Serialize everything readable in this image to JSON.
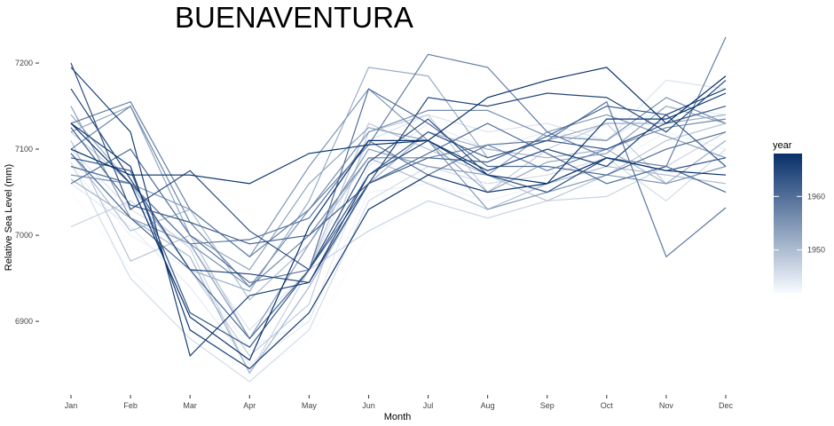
{
  "chart_data": {
    "type": "line",
    "title": "BUENAVENTURA",
    "xlabel": "Month",
    "ylabel": "Relative Sea Level (mm)",
    "categories": [
      "Jan",
      "Feb",
      "Mar",
      "Apr",
      "May",
      "Jun",
      "Jul",
      "Aug",
      "Sep",
      "Oct",
      "Nov",
      "Dec"
    ],
    "ylim": [
      6830,
      7232
    ],
    "yticks": [
      6900,
      7000,
      7100,
      7200
    ],
    "grid": false,
    "legend": {
      "title": "year",
      "placement": "right",
      "range": [
        1942,
        1968
      ],
      "ticks": [
        1950,
        1960
      ],
      "color_low": "#f7fbff",
      "color_high": "#08306b"
    },
    "series": [
      {
        "year": 1942,
        "values": [
          7050,
          6960,
          6900,
          6835,
          6880,
          7000,
          7040,
          7030,
          7050,
          7060,
          7070,
          7080
        ]
      },
      {
        "year": 1943,
        "values": [
          7080,
          7000,
          6960,
          6870,
          6900,
          7050,
          7060,
          7040,
          7060,
          7080,
          7120,
          7100
        ]
      },
      {
        "year": 1944,
        "values": [
          7060,
          7010,
          6940,
          6850,
          6900,
          7080,
          7130,
          7100,
          7120,
          7110,
          7150,
          7140
        ]
      },
      {
        "year": 1945,
        "values": [
          7100,
          7030,
          6990,
          6890,
          6960,
          7110,
          7140,
          7120,
          7130,
          7110,
          7180,
          7170
        ]
      },
      {
        "year": 1946,
        "values": [
          7085,
          6950,
          6880,
          6830,
          6890,
          7040,
          7080,
          7060,
          7070,
          7090,
          7040,
          7100
        ]
      },
      {
        "year": 1947,
        "values": [
          7010,
          7040,
          6985,
          6840,
          6960,
          7005,
          7040,
          7020,
          7040,
          7045,
          7080,
          7120
        ]
      },
      {
        "year": 1948,
        "values": [
          7120,
          7060,
          6960,
          6860,
          6920,
          7120,
          7140,
          7050,
          7100,
          7130,
          7060,
          7110
        ]
      },
      {
        "year": 1949,
        "values": [
          7110,
          6970,
          7000,
          6880,
          6960,
          7130,
          7100,
          7070,
          7040,
          7070,
          7110,
          7130
        ]
      },
      {
        "year": 1950,
        "values": [
          7095,
          7005,
          7030,
          6925,
          6990,
          7090,
          7060,
          7030,
          7060,
          7080,
          7070,
          7060
        ]
      },
      {
        "year": 1951,
        "values": [
          7065,
          7020,
          6975,
          6840,
          6940,
          7060,
          7120,
          7100,
          7090,
          7100,
          7060,
          7110
        ]
      },
      {
        "year": 1952,
        "values": [
          7140,
          7060,
          6960,
          6935,
          7040,
          7195,
          7185,
          7090,
          7110,
          7130,
          7130,
          7140
        ]
      },
      {
        "year": 1953,
        "values": [
          7120,
          7150,
          7000,
          6960,
          7060,
          7125,
          7110,
          7050,
          7085,
          7095,
          7150,
          7130
        ]
      },
      {
        "year": 1954,
        "values": [
          7150,
          7020,
          6990,
          6880,
          6990,
          7100,
          7080,
          7070,
          7120,
          7140,
          7115,
          7090
        ]
      },
      {
        "year": 1955,
        "values": [
          7080,
          7060,
          7030,
          6975,
          7080,
          7170,
          7110,
          7030,
          7050,
          7070,
          7060,
          7080
        ]
      },
      {
        "year": 1956,
        "values": [
          7070,
          7060,
          6990,
          6940,
          7030,
          7120,
          7145,
          7145,
          7115,
          7110,
          7160,
          7130
        ]
      },
      {
        "year": 1957,
        "values": [
          7100,
          7150,
          7015,
          6940,
          7000,
          7090,
          7090,
          7105,
          7075,
          7100,
          7125,
          7135
        ]
      },
      {
        "year": 1958,
        "values": [
          7130,
          7155,
          7030,
          6975,
          7030,
          7105,
          7210,
          7195,
          7120,
          7090,
          7080,
          7230
        ]
      },
      {
        "year": 1959,
        "values": [
          7080,
          7060,
          6990,
          6995,
          7020,
          7110,
          7070,
          7105,
          7110,
          7155,
          6975,
          7032
        ]
      },
      {
        "year": 1960,
        "values": [
          7060,
          7100,
          7000,
          6945,
          6960,
          7170,
          7130,
          7080,
          7080,
          7070,
          7100,
          7120
        ]
      },
      {
        "year": 1961,
        "values": [
          7095,
          7020,
          6960,
          6880,
          6960,
          7060,
          7095,
          7130,
          7095,
          7060,
          7080,
          7050
        ]
      },
      {
        "year": 1962,
        "values": [
          7125,
          7035,
          7015,
          6990,
          7000,
          7060,
          7090,
          7085,
          7115,
          7150,
          7140,
          7080
        ]
      },
      {
        "year": 1963,
        "values": [
          7090,
          7075,
          6910,
          6870,
          6960,
          7070,
          7120,
          7090,
          7110,
          7100,
          7130,
          7150
        ]
      },
      {
        "year": 1964,
        "values": [
          7200,
          7030,
          7075,
          7005,
          6960,
          7085,
          7135,
          7070,
          7050,
          7090,
          7075,
          7090
        ]
      },
      {
        "year": 1965,
        "values": [
          7170,
          7065,
          6960,
          6955,
          6945,
          7060,
          7160,
          7150,
          7165,
          7160,
          7120,
          7180
        ]
      },
      {
        "year": 1966,
        "values": [
          7195,
          7120,
          6860,
          6930,
          6945,
          7070,
          7110,
          7075,
          7100,
          7080,
          7140,
          7170
        ]
      },
      {
        "year": 1967,
        "values": [
          7130,
          7080,
          6890,
          6845,
          6910,
          7030,
          7070,
          7050,
          7060,
          7135,
          7135,
          7165
        ]
      },
      {
        "year": 1968,
        "values": [
          7130,
          7060,
          6905,
          6855,
          7010,
          7110,
          7110,
          7160,
          7180,
          7195,
          7130,
          7185
        ]
      },
      {
        "year": 1968,
        "values": [
          7100,
          7070,
          7070,
          7060,
          7095,
          7105,
          7110,
          7070,
          7060,
          7090,
          7075,
          7070
        ]
      }
    ]
  }
}
